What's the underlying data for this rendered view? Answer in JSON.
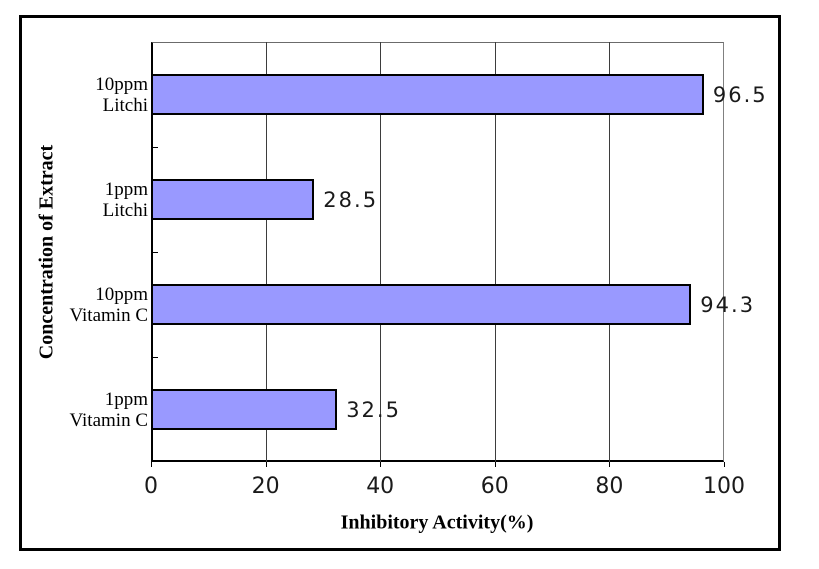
{
  "chart_data": {
    "type": "bar",
    "orientation": "horizontal",
    "title": "",
    "xlabel": "Inhibitory Activity(%)",
    "ylabel": "Concentration of Extract",
    "xlim": [
      0,
      100
    ],
    "xticks": [
      0,
      20,
      40,
      60,
      80,
      100
    ],
    "grid": "vertical-gridlines-on",
    "legend": "none",
    "bar_color": "#9999ff",
    "bar_border_color": "#000000",
    "categories": [
      "10ppm Litchi",
      "1ppm Litchi",
      "10ppm Vitamin C",
      "1ppm Vitamin C"
    ],
    "category_lines": [
      [
        "10ppm",
        "Litchi"
      ],
      [
        "1ppm",
        "Litchi"
      ],
      [
        "10ppm",
        "Vitamin C"
      ],
      [
        "1ppm",
        "Vitamin C"
      ]
    ],
    "values": [
      96.5,
      28.5,
      94.3,
      32.5
    ],
    "data_labels": [
      "96.5",
      "28.5",
      "94.3",
      "32.5"
    ]
  }
}
